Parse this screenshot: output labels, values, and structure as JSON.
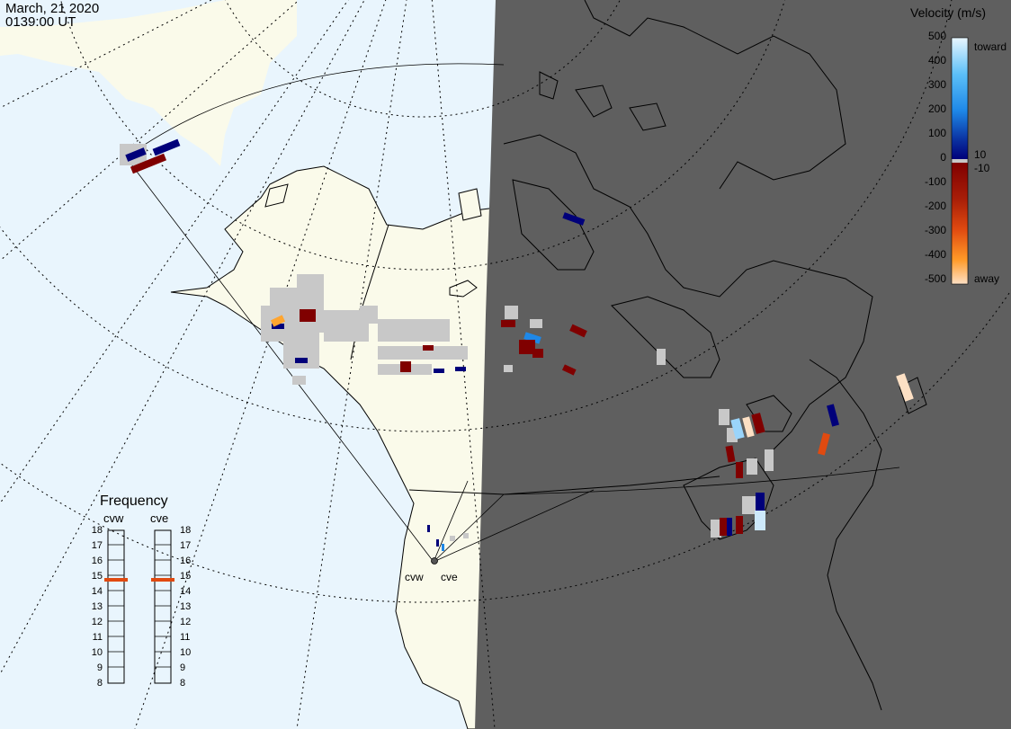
{
  "header": {
    "date": "March, 21 2020",
    "time": "0139:00 UT"
  },
  "colorbar": {
    "title": "Velocity (m/s)",
    "ticks": [
      "500",
      "400",
      "300",
      "200",
      "100",
      "10",
      "0",
      "-10",
      "-100",
      "-200",
      "-300",
      "-400",
      "-500"
    ],
    "toward_label": "toward",
    "away_label": "away",
    "colors": {
      "toward_high": "#e8f6fe",
      "toward_mid": "#1e88e8",
      "toward_low": "#00007a",
      "away_low": "#800000",
      "away_mid": "#e04a10",
      "away_high": "#fde0c4",
      "ground_scatter": "#c8c8c8"
    }
  },
  "frequency_panel": {
    "title": "Frequency",
    "radars": [
      {
        "name": "cvw",
        "selected_mhz": 15
      },
      {
        "name": "cve",
        "selected_mhz": 15
      }
    ],
    "levels": [
      "18",
      "17",
      "16",
      "15",
      "14",
      "13",
      "12",
      "11",
      "10",
      "9",
      "8"
    ]
  },
  "sites": [
    {
      "name": "cvw"
    },
    {
      "name": "cve"
    }
  ],
  "map_colors": {
    "ocean": "#e9f5fd",
    "land_day": "#fafaea",
    "night": "#5f5f5f"
  }
}
